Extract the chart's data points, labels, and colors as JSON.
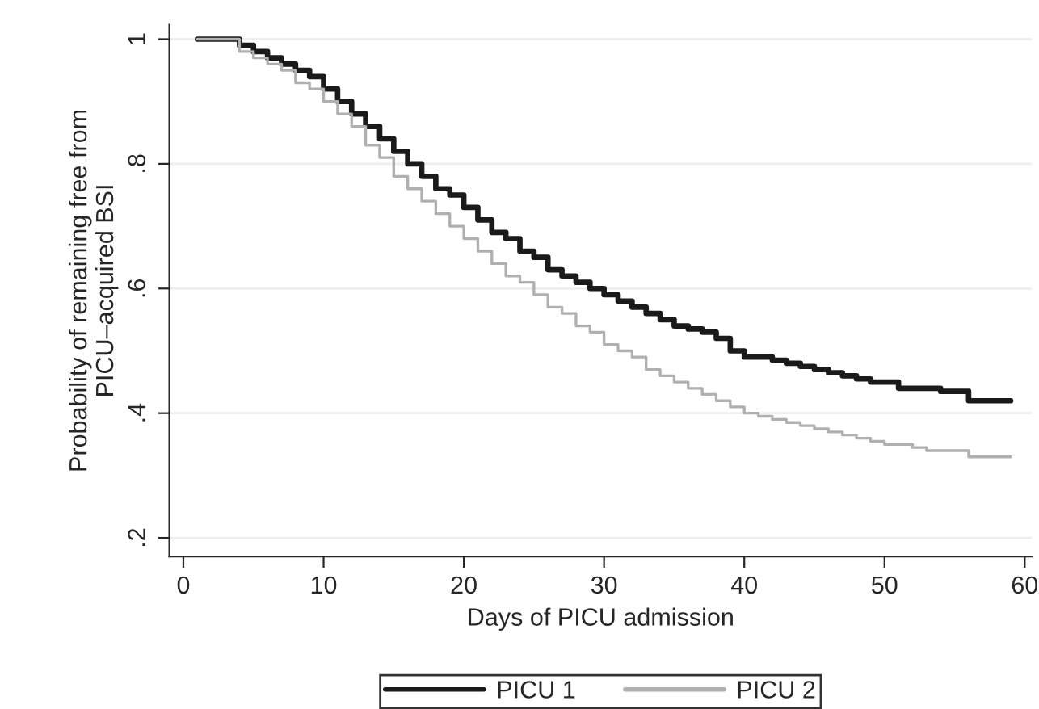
{
  "chart_data": {
    "type": "step",
    "xlabel": "Days of PICU admission",
    "ylabel": "Probability of remaining free from\nPICU–acquired BSI",
    "x": [
      1,
      3,
      4,
      5,
      6,
      7,
      8,
      9,
      10,
      11,
      12,
      13,
      14,
      15,
      16,
      17,
      18,
      19,
      20,
      21,
      22,
      23,
      24,
      25,
      26,
      27,
      28,
      29,
      30,
      31,
      32,
      33,
      34,
      35,
      36,
      37,
      38,
      39,
      40,
      41,
      42,
      43,
      44,
      45,
      46,
      47,
      48,
      49,
      50,
      51,
      52,
      53,
      54,
      55,
      56,
      59
    ],
    "series": [
      {
        "name": "PICU 1",
        "color": "#1a1a1a",
        "values": [
          1.0,
          1.0,
          0.99,
          0.98,
          0.97,
          0.96,
          0.95,
          0.94,
          0.92,
          0.9,
          0.88,
          0.86,
          0.84,
          0.82,
          0.8,
          0.78,
          0.76,
          0.75,
          0.73,
          0.71,
          0.69,
          0.68,
          0.66,
          0.65,
          0.63,
          0.62,
          0.61,
          0.6,
          0.59,
          0.58,
          0.57,
          0.56,
          0.55,
          0.54,
          0.535,
          0.53,
          0.52,
          0.5,
          0.49,
          0.49,
          0.485,
          0.48,
          0.475,
          0.47,
          0.465,
          0.46,
          0.455,
          0.45,
          0.45,
          0.44,
          0.44,
          0.44,
          0.435,
          0.435,
          0.42,
          0.42
        ]
      },
      {
        "name": "PICU 2",
        "color": "#b0b0b0",
        "values": [
          1.0,
          1.0,
          0.98,
          0.97,
          0.96,
          0.95,
          0.93,
          0.92,
          0.9,
          0.88,
          0.86,
          0.83,
          0.81,
          0.78,
          0.76,
          0.74,
          0.72,
          0.7,
          0.68,
          0.66,
          0.64,
          0.62,
          0.61,
          0.59,
          0.57,
          0.56,
          0.54,
          0.53,
          0.51,
          0.5,
          0.49,
          0.47,
          0.46,
          0.45,
          0.44,
          0.43,
          0.42,
          0.41,
          0.4,
          0.395,
          0.39,
          0.385,
          0.38,
          0.375,
          0.37,
          0.365,
          0.36,
          0.355,
          0.35,
          0.35,
          0.345,
          0.34,
          0.34,
          0.34,
          0.33,
          0.33
        ]
      }
    ],
    "xlim": [
      -1,
      60.5
    ],
    "ylim": [
      0.17,
      1.023
    ],
    "xticks": [
      0,
      10,
      20,
      30,
      40,
      50,
      60
    ],
    "yticks": [
      {
        "value": 0.2,
        "label": ".2"
      },
      {
        "value": 0.4,
        "label": ".4"
      },
      {
        "value": 0.6,
        "label": ".6"
      },
      {
        "value": 0.8,
        "label": ".8"
      },
      {
        "value": 1,
        "label": "1"
      }
    ],
    "grid": "y",
    "legend": "bottom",
    "line_style": "solid"
  }
}
